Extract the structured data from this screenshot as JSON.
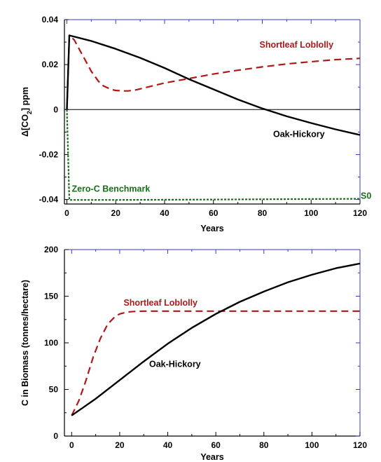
{
  "chart_data": [
    {
      "type": "line",
      "xlabel": "Years",
      "ylabel_parts": [
        "Δ[CO",
        "2",
        "] ppm"
      ],
      "xlim": [
        -1,
        120
      ],
      "ylim": [
        -0.042,
        0.04
      ],
      "x_ticks": [
        0,
        20,
        40,
        60,
        80,
        100,
        120
      ],
      "x_tick_labels": [
        "0",
        "20",
        "40",
        "60",
        "80",
        "100",
        "120"
      ],
      "y_ticks": [
        -0.04,
        -0.02,
        0,
        0.02,
        0.04
      ],
      "y_tick_labels": [
        "-0.04",
        "-0.02",
        "0",
        "0.02",
        "0.04"
      ],
      "zero_line": true,
      "series": [
        {
          "name": "Shortleaf Loblolly",
          "color": "#b01818",
          "dash": "dashed",
          "x": [
            0,
            1,
            3,
            5,
            8,
            10,
            13,
            15,
            18,
            20,
            23,
            25,
            28,
            30,
            35,
            40,
            50,
            60,
            70,
            80,
            90,
            100,
            110,
            120
          ],
          "y": [
            0,
            0.033,
            0.031,
            0.027,
            0.021,
            0.017,
            0.0125,
            0.0105,
            0.009,
            0.0085,
            0.0083,
            0.0083,
            0.0087,
            0.0092,
            0.0105,
            0.0118,
            0.0138,
            0.0158,
            0.0175,
            0.019,
            0.0203,
            0.0213,
            0.0222,
            0.0228
          ]
        },
        {
          "name": "Oak-Hickory",
          "color": "#000000",
          "dash": "solid",
          "x": [
            0,
            1,
            10,
            20,
            30,
            40,
            50,
            60,
            70,
            80,
            90,
            100,
            110,
            120
          ],
          "y": [
            0,
            0.033,
            0.0305,
            0.027,
            0.023,
            0.0185,
            0.0135,
            0.009,
            0.0045,
            0.0005,
            -0.003,
            -0.006,
            -0.0088,
            -0.0113
          ]
        },
        {
          "name": "Zero-C Benchmark",
          "color": "#1a6e1a",
          "dash": "dotted",
          "x": [
            0,
            0.5,
            1,
            20,
            60,
            100,
            120
          ],
          "y": [
            0,
            -0.02,
            -0.0402,
            -0.0402,
            -0.04,
            -0.0398,
            -0.0397
          ]
        }
      ],
      "annotations": [
        {
          "text": "Shortleaf Loblolly",
          "x": 94,
          "y": 0.0275,
          "color": "#b01818",
          "anchor": "middle"
        },
        {
          "text": "Oak-Hickory",
          "x": 95,
          "y": -0.0122,
          "color": "#000000",
          "anchor": "middle"
        },
        {
          "text": "Zero-C Benchmark",
          "x": 2,
          "y": -0.0366,
          "color": "#1a6e1a",
          "anchor": "start"
        },
        {
          "text": "S0",
          "x": 120.3,
          "y": -0.0396,
          "color": "#1a6e1a",
          "anchor": "start"
        }
      ]
    },
    {
      "type": "line",
      "xlabel": "Years",
      "ylabel": "C in Biomass (tonnes/hectare)",
      "xlim": [
        -3,
        120
      ],
      "ylim": [
        0,
        200
      ],
      "x_ticks": [
        0,
        20,
        40,
        60,
        80,
        100,
        120
      ],
      "x_tick_labels": [
        "0",
        "20",
        "40",
        "60",
        "80",
        "100",
        "120"
      ],
      "y_ticks": [
        0,
        50,
        100,
        150,
        200
      ],
      "y_tick_labels": [
        "0",
        "50",
        "100",
        "150",
        "200"
      ],
      "series": [
        {
          "name": "Shortleaf Loblolly",
          "color": "#b01818",
          "dash": "dashed",
          "x": [
            0,
            3,
            6,
            9,
            12,
            15,
            18,
            20,
            23,
            26,
            30,
            35,
            40,
            50,
            60,
            80,
            100,
            120
          ],
          "y": [
            22,
            38,
            60,
            85,
            105,
            120,
            128,
            131,
            133,
            133.6,
            134,
            134,
            134,
            134,
            134,
            134,
            134,
            134
          ]
        },
        {
          "name": "Oak-Hickory",
          "color": "#000000",
          "dash": "solid",
          "x": [
            0,
            10,
            20,
            30,
            40,
            50,
            60,
            70,
            80,
            90,
            100,
            110,
            120
          ],
          "y": [
            22,
            40,
            60,
            80,
            99,
            116,
            131,
            144,
            155,
            165,
            173,
            180,
            185
          ]
        }
      ],
      "annotations": [
        {
          "text": "Shortleaf Loblolly",
          "x": 37,
          "y": 140,
          "color": "#b01818",
          "anchor": "middle"
        },
        {
          "text": "Oak-Hickory",
          "x": 43,
          "y": 74,
          "color": "#000000",
          "anchor": "middle"
        }
      ]
    }
  ]
}
